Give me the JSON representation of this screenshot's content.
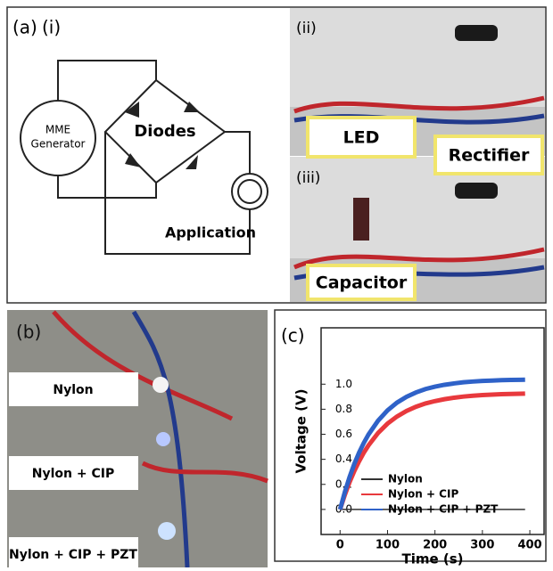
{
  "panel_a": {
    "label": "(a)",
    "sub_i": "(i)",
    "generator": [
      "MME",
      "Generator"
    ],
    "diodes": "Diodes",
    "application": "Application",
    "sub_ii": "(ii)",
    "led": "LED",
    "rectifier": "Rectifier",
    "sub_iii": "(iii)",
    "capacitor": "Capacitor"
  },
  "panel_b": {
    "label": "(b)",
    "samples": [
      "Nylon",
      "Nylon + CIP",
      "Nylon + CIP + PZT"
    ]
  },
  "chart_data": {
    "type": "line",
    "label": "(c)",
    "xlabel": "Time (s)",
    "ylabel": "Voltage (V)",
    "x": [
      0,
      10,
      20,
      30,
      40,
      50,
      60,
      80,
      100,
      120,
      140,
      160,
      180,
      200,
      220,
      240,
      260,
      280,
      300,
      320,
      340,
      360,
      380,
      390
    ],
    "series": [
      {
        "name": "Nylon",
        "color": "#333333",
        "values": [
          0,
          0,
          0,
          0,
          0,
          0,
          0,
          0,
          0,
          0,
          0,
          0,
          0,
          0,
          0,
          0,
          0,
          0,
          0,
          0,
          0,
          0,
          0,
          0
        ]
      },
      {
        "name": "Nylon + CIP",
        "color": "#e8393d",
        "values": [
          0,
          0.116,
          0.218,
          0.307,
          0.384,
          0.453,
          0.512,
          0.61,
          0.685,
          0.742,
          0.786,
          0.82,
          0.846,
          0.865,
          0.88,
          0.892,
          0.901,
          0.908,
          0.913,
          0.917,
          0.92,
          0.922,
          0.924,
          0.925
        ]
      },
      {
        "name": "Nylon + CIP + PZT",
        "color": "#2f62c8",
        "values": [
          0,
          0.138,
          0.258,
          0.363,
          0.453,
          0.531,
          0.599,
          0.708,
          0.791,
          0.853,
          0.899,
          0.934,
          0.961,
          0.98,
          0.995,
          1.006,
          1.015,
          1.021,
          1.026,
          1.029,
          1.032,
          1.034,
          1.035,
          1.036
        ]
      }
    ],
    "xlim": [
      -40,
      430
    ],
    "ylim": [
      -0.2,
      1.45
    ],
    "xticks": [
      0,
      100,
      200,
      300,
      400
    ],
    "yticks": [
      {
        "value": 0,
        "label": "0.0"
      },
      {
        "value": 0.2,
        "label": "0.2"
      },
      {
        "value": 0.4,
        "label": "0.4"
      },
      {
        "value": 0.6,
        "label": "0.6"
      },
      {
        "value": 0.8,
        "label": "0.8"
      },
      {
        "value": 1,
        "label": "1.0"
      }
    ],
    "legend": "lower right"
  }
}
